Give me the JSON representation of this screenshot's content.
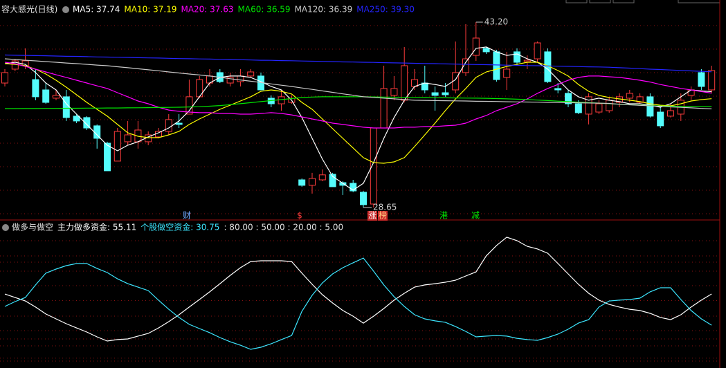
{
  "chart_data": [
    {
      "type": "candlestick",
      "title": "容大感光(日线)",
      "ylim": [
        27.67,
        43.96
      ],
      "up_color": "#ff3c3c",
      "down_color": "#54fcfc",
      "ohlc": [
        [
          38.42,
          39.51,
          38.15,
          39.24
        ],
        [
          39.51,
          40.32,
          39.35,
          40.16
        ],
        [
          39.78,
          41.14,
          39.51,
          40.16
        ],
        [
          38.69,
          39.51,
          37.07,
          37.34
        ],
        [
          37.88,
          38.42,
          36.79,
          36.9
        ],
        [
          37.23,
          37.88,
          37.07,
          37.45
        ],
        [
          37.34,
          37.88,
          35.44,
          35.71
        ],
        [
          35.82,
          35.98,
          35.27,
          35.44
        ],
        [
          35.71,
          35.82,
          34.73,
          34.89
        ],
        [
          35.06,
          35.17,
          33.27,
          34.08
        ],
        [
          33.7,
          33.81,
          31.53,
          31.53
        ],
        [
          32.29,
          34.89,
          32.29,
          34.62
        ],
        [
          33.81,
          35.44,
          33.54,
          34.35
        ],
        [
          33.81,
          35.44,
          33.27,
          34.73
        ],
        [
          33.81,
          34.62,
          33.54,
          34.35
        ],
        [
          34.19,
          34.89,
          34.08,
          34.62
        ],
        [
          34.62,
          35.98,
          34.35,
          35.55
        ],
        [
          35.27,
          35.98,
          34.89,
          35.17
        ],
        [
          35.98,
          38.69,
          35.98,
          37.34
        ],
        [
          37.34,
          38.97,
          37.23,
          38.69
        ],
        [
          38.42,
          39.51,
          38.15,
          38.97
        ],
        [
          39.24,
          39.51,
          38.42,
          38.53
        ],
        [
          38.42,
          39.24,
          38.15,
          38.86
        ],
        [
          38.53,
          39.51,
          38.15,
          38.97
        ],
        [
          38.97,
          39.51,
          38.86,
          39.29
        ],
        [
          38.97,
          39.24,
          37.88,
          37.88
        ],
        [
          37.23,
          37.45,
          36.52,
          36.79
        ],
        [
          36.79,
          37.88,
          36.25,
          37.34
        ],
        [
          36.9,
          37.45,
          36.79,
          37.23
        ],
        [
          30.82,
          30.93,
          30.28,
          30.39
        ],
        [
          30.39,
          31.37,
          29.74,
          30.93
        ],
        [
          30.82,
          31.64,
          30.71,
          31.21
        ],
        [
          31.26,
          31.37,
          30.28,
          30.28
        ],
        [
          30.6,
          30.71,
          29.63,
          30.39
        ],
        [
          30.55,
          30.82,
          29.85,
          29.95
        ],
        [
          29.85,
          29.95,
          28.65,
          28.87
        ],
        [
          28.92,
          34.89,
          28.65,
          34.89
        ],
        [
          34.89,
          39.78,
          34.89,
          37.99
        ],
        [
          37.45,
          38.97,
          37.07,
          37.99
        ],
        [
          37.07,
          41.25,
          36.9,
          39.78
        ],
        [
          38.15,
          39.51,
          37.88,
          38.69
        ],
        [
          38.42,
          39.78,
          37.61,
          37.88
        ],
        [
          37.66,
          38.15,
          36.25,
          37.45
        ],
        [
          37.66,
          38.42,
          37.34,
          37.5
        ],
        [
          37.88,
          41.68,
          37.61,
          39.24
        ],
        [
          39.24,
          43.04,
          38.97,
          40.32
        ],
        [
          40.59,
          43.2,
          40.16,
          41.95
        ],
        [
          41.14,
          41.25,
          40.7,
          40.87
        ],
        [
          40.87,
          41.03,
          38.53,
          38.69
        ],
        [
          38.86,
          40.87,
          37.88,
          39.51
        ],
        [
          40.87,
          41.14,
          39.78,
          40.05
        ],
        [
          40.1,
          40.59,
          39.51,
          40.21
        ],
        [
          40.32,
          41.68,
          40.05,
          41.57
        ],
        [
          40.87,
          41.14,
          38.42,
          38.53
        ],
        [
          37.99,
          38.42,
          37.61,
          37.88
        ],
        [
          37.61,
          37.88,
          36.52,
          36.79
        ],
        [
          36.79,
          37.07,
          35.98,
          36.09
        ],
        [
          35.98,
          37.61,
          35.17,
          37.34
        ],
        [
          36.14,
          37.07,
          35.98,
          36.79
        ],
        [
          36.25,
          37.34,
          36.09,
          37.07
        ],
        [
          36.9,
          37.61,
          36.52,
          37.34
        ],
        [
          37.23,
          37.88,
          36.9,
          37.61
        ],
        [
          36.9,
          37.61,
          36.79,
          37.34
        ],
        [
          37.34,
          37.61,
          35.71,
          35.82
        ],
        [
          36.14,
          36.52,
          34.89,
          35.06
        ],
        [
          35.82,
          36.79,
          35.71,
          36.25
        ],
        [
          35.98,
          37.61,
          35.44,
          37.07
        ],
        [
          37.45,
          38.15,
          37.07,
          37.88
        ],
        [
          39.24,
          39.51,
          37.88,
          38.15
        ],
        [
          37.88,
          39.78,
          37.61,
          39.4
        ]
      ],
      "series": [
        {
          "legend": "MA5: 37.74",
          "color": "#ffffff",
          "values": [
            39.94,
            40.05,
            39.89,
            39.24,
            38.42,
            37.88,
            36.79,
            35.98,
            35.17,
            34.35,
            33.54,
            33.1,
            33.54,
            33.81,
            34.19,
            34.51,
            34.89,
            35.44,
            36.25,
            37.34,
            38.42,
            38.86,
            38.97,
            38.97,
            38.86,
            38.53,
            38.15,
            37.88,
            37.07,
            35.71,
            34.08,
            32.45,
            31.09,
            30.55,
            30.01,
            30.55,
            32.18,
            34.08,
            35.71,
            37.07,
            38.15,
            38.42,
            38.31,
            38.15,
            38.69,
            40.05,
            41.14,
            41.25,
            40.87,
            40.59,
            40.7,
            40.32,
            40.05,
            39.51,
            38.69,
            37.88,
            37.34,
            37.07,
            37.23,
            37.07,
            36.96,
            36.79,
            36.79,
            36.68,
            36.52,
            36.79,
            37.34,
            37.88,
            37.8,
            37.74
          ]
        },
        {
          "legend": "MA10: 37.19",
          "color": "#ffff00",
          "values": [
            39.94,
            39.89,
            39.78,
            39.51,
            39.13,
            38.64,
            38.09,
            37.5,
            36.9,
            36.36,
            35.82,
            35.17,
            34.51,
            34.24,
            34.13,
            34.13,
            34.35,
            34.62,
            35.17,
            35.6,
            35.98,
            36.36,
            36.68,
            37.01,
            37.34,
            37.77,
            37.88,
            37.77,
            37.56,
            36.9,
            36.36,
            35.6,
            34.84,
            34.08,
            33.32,
            32.56,
            32.17,
            32.12,
            32.23,
            32.56,
            33.43,
            34.35,
            35.27,
            36.25,
            37.17,
            37.99,
            38.86,
            39.29,
            39.51,
            39.72,
            39.89,
            40.05,
            40.05,
            39.78,
            39.4,
            38.97,
            38.31,
            37.77,
            37.45,
            37.28,
            37.17,
            37.07,
            36.96,
            36.79,
            36.68,
            36.63,
            36.79,
            37.01,
            37.12,
            37.19
          ]
        },
        {
          "legend": "MA20: 37.63",
          "color": "#ff00ff",
          "values": [
            40.05,
            39.94,
            39.72,
            39.51,
            39.29,
            39.07,
            38.86,
            38.64,
            38.42,
            38.2,
            37.99,
            37.66,
            37.34,
            37.01,
            36.79,
            36.52,
            36.3,
            36.2,
            36.14,
            36.09,
            36.09,
            36.03,
            36.03,
            35.98,
            35.98,
            36.03,
            36.09,
            36.03,
            35.92,
            35.76,
            35.6,
            35.44,
            35.27,
            35.17,
            35.06,
            34.95,
            34.89,
            34.89,
            34.89,
            34.95,
            34.95,
            35.0,
            35.0,
            35.06,
            35.11,
            35.27,
            35.6,
            35.87,
            36.25,
            36.52,
            36.79,
            37.17,
            37.61,
            37.99,
            38.31,
            38.64,
            38.86,
            38.97,
            38.97,
            38.91,
            38.86,
            38.75,
            38.64,
            38.5,
            38.3,
            38.15,
            38.0,
            37.88,
            37.75,
            37.63
          ]
        },
        {
          "legend": "MA60: 36.59",
          "color": "#00e600",
          "values": [
            36.41,
            36.41,
            36.42,
            36.42,
            36.43,
            36.43,
            36.44,
            36.44,
            36.45,
            36.45,
            36.46,
            36.46,
            36.47,
            36.48,
            36.49,
            36.5,
            36.51,
            36.52,
            36.54,
            36.56,
            36.6,
            36.65,
            36.72,
            36.8,
            36.88,
            36.96,
            37.04,
            37.12,
            37.2,
            37.28,
            37.32,
            37.34,
            37.34,
            37.34,
            37.34,
            37.34,
            37.33,
            37.32,
            37.31,
            37.3,
            37.29,
            37.28,
            37.27,
            37.26,
            37.25,
            37.24,
            37.23,
            37.22,
            37.2,
            37.18,
            37.15,
            37.12,
            37.08,
            37.04,
            37.0,
            36.96,
            36.92,
            36.88,
            36.84,
            36.8,
            36.76,
            36.72,
            36.68,
            36.65,
            36.62,
            36.6,
            36.58,
            36.58,
            36.59,
            36.59
          ]
        },
        {
          "legend": "MA120: 36.39",
          "color": "#c8c8c8",
          "values": [
            40.32,
            40.27,
            40.21,
            40.16,
            40.1,
            40.05,
            39.99,
            39.94,
            39.89,
            39.83,
            39.78,
            39.7,
            39.62,
            39.54,
            39.46,
            39.38,
            39.29,
            39.21,
            39.13,
            39.05,
            38.97,
            38.87,
            38.76,
            38.66,
            38.56,
            38.46,
            38.35,
            38.25,
            38.15,
            38.03,
            37.92,
            37.8,
            37.69,
            37.57,
            37.46,
            37.34,
            37.29,
            37.23,
            37.18,
            37.12,
            37.07,
            37.06,
            37.04,
            37.03,
            37.02,
            37.01,
            36.99,
            36.98,
            36.97,
            36.95,
            36.94,
            36.93,
            36.92,
            36.9,
            36.9,
            36.88,
            36.87,
            36.85,
            36.84,
            36.82,
            36.75,
            36.71,
            36.67,
            36.63,
            36.59,
            36.55,
            36.51,
            36.47,
            36.43,
            36.39
          ]
        },
        {
          "legend": "MA250: 39.30",
          "color": "#2424ff",
          "values": [
            40.62,
            40.6,
            40.59,
            40.57,
            40.56,
            40.54,
            40.52,
            40.51,
            40.49,
            40.47,
            40.46,
            40.44,
            40.43,
            40.41,
            40.39,
            40.38,
            40.36,
            40.34,
            40.33,
            40.31,
            40.3,
            40.28,
            40.26,
            40.25,
            40.23,
            40.21,
            40.2,
            40.18,
            40.17,
            40.15,
            40.13,
            40.12,
            40.1,
            40.08,
            40.07,
            40.05,
            40.04,
            40.02,
            40.0,
            39.99,
            39.97,
            39.95,
            39.94,
            39.92,
            39.91,
            39.89,
            39.87,
            39.86,
            39.84,
            39.82,
            39.81,
            39.79,
            39.78,
            39.76,
            39.74,
            39.73,
            39.71,
            39.69,
            39.68,
            39.66,
            39.62,
            39.59,
            39.55,
            39.51,
            39.48,
            39.44,
            39.41,
            39.37,
            39.34,
            39.3
          ]
        }
      ],
      "high_label": "43.20",
      "low_label": "28.65",
      "markers": [
        {
          "text": "财",
          "color": "#6fa8ff"
        },
        {
          "text": "$",
          "color": "#ff3c3c"
        },
        {
          "text": "涨",
          "color": "#ffffff",
          "background": "#c82828"
        },
        {
          "text": "榜",
          "color": "#ffd080",
          "background": "#c82828"
        },
        {
          "text": "港",
          "color": "#00e600"
        },
        {
          "text": "减",
          "color": "#00e600"
        }
      ]
    },
    {
      "type": "line",
      "title": "做多与做空",
      "ylim": [
        0,
        100
      ],
      "series": [
        {
          "legend": "主力做多资金: 55.11",
          "color": "#ffffff",
          "values": [
            55.1,
            52.4,
            49.7,
            44.9,
            39.5,
            35.7,
            31.9,
            28.6,
            25.4,
            21.6,
            18.4,
            19.5,
            20.0,
            22.2,
            24.3,
            28.6,
            33.5,
            38.9,
            44.9,
            50.8,
            56.8,
            63.2,
            69.7,
            75.7,
            80.5,
            81.1,
            81.1,
            81.1,
            80.5,
            71.4,
            62.7,
            54.6,
            48.1,
            42.2,
            37.8,
            32.4,
            37.8,
            43.8,
            50.3,
            55.7,
            60.5,
            62.2,
            63.2,
            64.3,
            65.9,
            69.2,
            72.4,
            84.9,
            93.0,
            99.5,
            96.8,
            92.4,
            90.3,
            87.0,
            78.9,
            70.8,
            62.7,
            55.7,
            50.3,
            47.0,
            44.9,
            43.2,
            42.2,
            40.0,
            36.8,
            35.1,
            38.9,
            44.9,
            50.3,
            55.11
          ]
        },
        {
          "legend": "个股做空资金: 30.75",
          "color": "#3ce6ff",
          "values": [
            45.4,
            49.2,
            52.4,
            62.2,
            71.4,
            74.6,
            77.3,
            78.9,
            78.9,
            75.1,
            71.9,
            67.0,
            63.2,
            60.5,
            57.8,
            50.3,
            43.2,
            36.8,
            31.4,
            28.1,
            24.9,
            21.1,
            17.8,
            15.1,
            11.9,
            13.5,
            16.2,
            19.5,
            22.7,
            41.6,
            54.1,
            63.8,
            70.8,
            75.7,
            79.5,
            83.2,
            73.0,
            62.2,
            53.0,
            45.4,
            38.9,
            35.7,
            34.1,
            33.0,
            29.7,
            25.9,
            21.6,
            22.2,
            22.7,
            22.2,
            20.5,
            19.5,
            18.9,
            21.1,
            23.8,
            27.6,
            32.4,
            35.1,
            44.9,
            49.7,
            50.3,
            50.8,
            51.9,
            56.8,
            60.0,
            60.0,
            50.8,
            42.2,
            35.7,
            30.75
          ]
        }
      ],
      "levels": [
        80,
        50,
        20,
        5
      ],
      "levels_label": ": 80.00 : 50.00 : 20.00 : 5.00"
    }
  ]
}
